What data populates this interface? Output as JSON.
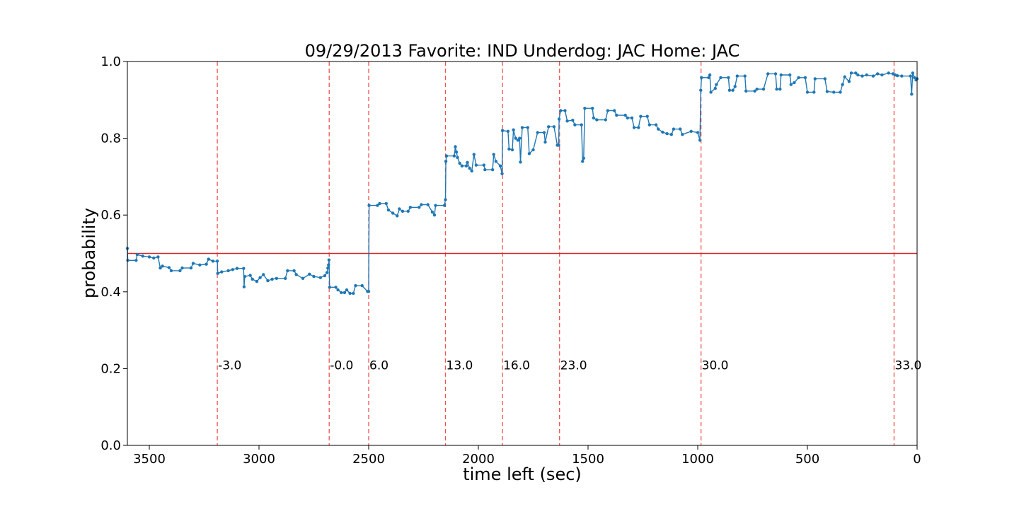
{
  "chart_data": {
    "type": "line",
    "title": "09/29/2013 Favorite: IND Underdog: JAC Home: JAC",
    "xlabel": "time left (sec)",
    "ylabel": "probability",
    "xlim": [
      3600,
      0
    ],
    "ylim": [
      0.0,
      1.0
    ],
    "x_ticks": [
      3500,
      3000,
      2500,
      2000,
      1500,
      1000,
      500,
      0
    ],
    "x_tick_labels": [
      "3500",
      "3000",
      "2500",
      "2000",
      "1500",
      "1000",
      "500",
      "0"
    ],
    "y_ticks": [
      0.0,
      0.2,
      0.4,
      0.6,
      0.8,
      1.0
    ],
    "y_tick_labels": [
      "0.0",
      "0.2",
      "0.4",
      "0.6",
      "0.8",
      "1.0"
    ],
    "grid": false,
    "reference_line": {
      "y": 0.5,
      "color": "#d62728"
    },
    "score_markers": [
      {
        "x": 3190,
        "label": "-3.0"
      },
      {
        "x": 2680,
        "label": "-0.0"
      },
      {
        "x": 2500,
        "label": "6.0"
      },
      {
        "x": 2150,
        "label": "13.0"
      },
      {
        "x": 1890,
        "label": "16.0"
      },
      {
        "x": 1630,
        "label": "23.0"
      },
      {
        "x": 985,
        "label": "30.0"
      },
      {
        "x": 105,
        "label": "33.0"
      }
    ],
    "series": [
      {
        "color": "#1f77b4",
        "points": [
          [
            3600,
            0.513
          ],
          [
            3598,
            0.482
          ],
          [
            3560,
            0.482
          ],
          [
            3555,
            0.497
          ],
          [
            3530,
            0.493
          ],
          [
            3500,
            0.491
          ],
          [
            3480,
            0.488
          ],
          [
            3460,
            0.491
          ],
          [
            3450,
            0.462
          ],
          [
            3440,
            0.467
          ],
          [
            3410,
            0.463
          ],
          [
            3400,
            0.455
          ],
          [
            3360,
            0.455
          ],
          [
            3350,
            0.462
          ],
          [
            3310,
            0.462
          ],
          [
            3300,
            0.474
          ],
          [
            3270,
            0.47
          ],
          [
            3240,
            0.472
          ],
          [
            3230,
            0.485
          ],
          [
            3210,
            0.48
          ],
          [
            3190,
            0.48
          ],
          [
            3188,
            0.448
          ],
          [
            3170,
            0.452
          ],
          [
            3140,
            0.455
          ],
          [
            3120,
            0.458
          ],
          [
            3100,
            0.461
          ],
          [
            3070,
            0.461
          ],
          [
            3068,
            0.413
          ],
          [
            3065,
            0.44
          ],
          [
            3040,
            0.443
          ],
          [
            3030,
            0.433
          ],
          [
            3010,
            0.427
          ],
          [
            2995,
            0.437
          ],
          [
            2980,
            0.445
          ],
          [
            2960,
            0.429
          ],
          [
            2940,
            0.433
          ],
          [
            2920,
            0.435
          ],
          [
            2880,
            0.435
          ],
          [
            2870,
            0.455
          ],
          [
            2840,
            0.455
          ],
          [
            2830,
            0.445
          ],
          [
            2800,
            0.435
          ],
          [
            2770,
            0.446
          ],
          [
            2750,
            0.44
          ],
          [
            2720,
            0.437
          ],
          [
            2700,
            0.442
          ],
          [
            2690,
            0.45
          ],
          [
            2686,
            0.462
          ],
          [
            2683,
            0.47
          ],
          [
            2681,
            0.483
          ],
          [
            2678,
            0.412
          ],
          [
            2650,
            0.412
          ],
          [
            2640,
            0.405
          ],
          [
            2625,
            0.398
          ],
          [
            2610,
            0.398
          ],
          [
            2600,
            0.405
          ],
          [
            2585,
            0.396
          ],
          [
            2570,
            0.396
          ],
          [
            2560,
            0.416
          ],
          [
            2530,
            0.416
          ],
          [
            2505,
            0.401
          ],
          [
            2500,
            0.401
          ],
          [
            2498,
            0.625
          ],
          [
            2460,
            0.625
          ],
          [
            2450,
            0.63
          ],
          [
            2420,
            0.63
          ],
          [
            2410,
            0.613
          ],
          [
            2390,
            0.605
          ],
          [
            2370,
            0.598
          ],
          [
            2360,
            0.616
          ],
          [
            2345,
            0.61
          ],
          [
            2320,
            0.61
          ],
          [
            2310,
            0.62
          ],
          [
            2270,
            0.62
          ],
          [
            2260,
            0.627
          ],
          [
            2230,
            0.627
          ],
          [
            2210,
            0.608
          ],
          [
            2200,
            0.6
          ],
          [
            2195,
            0.625
          ],
          [
            2155,
            0.625
          ],
          [
            2150,
            0.64
          ],
          [
            2148,
            0.74
          ],
          [
            2145,
            0.754
          ],
          [
            2110,
            0.754
          ],
          [
            2105,
            0.778
          ],
          [
            2100,
            0.764
          ],
          [
            2095,
            0.75
          ],
          [
            2085,
            0.735
          ],
          [
            2075,
            0.728
          ],
          [
            2055,
            0.728
          ],
          [
            2050,
            0.737
          ],
          [
            2040,
            0.722
          ],
          [
            2030,
            0.715
          ],
          [
            2020,
            0.758
          ],
          [
            2010,
            0.73
          ],
          [
            1975,
            0.73
          ],
          [
            1970,
            0.718
          ],
          [
            1935,
            0.718
          ],
          [
            1930,
            0.758
          ],
          [
            1920,
            0.74
          ],
          [
            1900,
            0.728
          ],
          [
            1892,
            0.708
          ],
          [
            1890,
            0.82
          ],
          [
            1865,
            0.818
          ],
          [
            1860,
            0.772
          ],
          [
            1845,
            0.77
          ],
          [
            1840,
            0.822
          ],
          [
            1830,
            0.8
          ],
          [
            1820,
            0.795
          ],
          [
            1812,
            0.8
          ],
          [
            1808,
            0.738
          ],
          [
            1800,
            0.828
          ],
          [
            1775,
            0.828
          ],
          [
            1768,
            0.76
          ],
          [
            1750,
            0.77
          ],
          [
            1730,
            0.815
          ],
          [
            1700,
            0.815
          ],
          [
            1695,
            0.79
          ],
          [
            1680,
            0.83
          ],
          [
            1655,
            0.83
          ],
          [
            1640,
            0.782
          ],
          [
            1634,
            0.782
          ],
          [
            1632,
            0.85
          ],
          [
            1625,
            0.872
          ],
          [
            1605,
            0.872
          ],
          [
            1595,
            0.845
          ],
          [
            1570,
            0.847
          ],
          [
            1560,
            0.835
          ],
          [
            1530,
            0.835
          ],
          [
            1525,
            0.74
          ],
          [
            1520,
            0.748
          ],
          [
            1515,
            0.878
          ],
          [
            1480,
            0.878
          ],
          [
            1475,
            0.853
          ],
          [
            1460,
            0.848
          ],
          [
            1420,
            0.848
          ],
          [
            1410,
            0.872
          ],
          [
            1380,
            0.872
          ],
          [
            1370,
            0.86
          ],
          [
            1330,
            0.86
          ],
          [
            1320,
            0.853
          ],
          [
            1300,
            0.853
          ],
          [
            1290,
            0.828
          ],
          [
            1270,
            0.828
          ],
          [
            1260,
            0.857
          ],
          [
            1230,
            0.857
          ],
          [
            1220,
            0.835
          ],
          [
            1190,
            0.835
          ],
          [
            1180,
            0.824
          ],
          [
            1160,
            0.816
          ],
          [
            1140,
            0.812
          ],
          [
            1120,
            0.81
          ],
          [
            1110,
            0.824
          ],
          [
            1080,
            0.824
          ],
          [
            1070,
            0.81
          ],
          [
            1030,
            0.818
          ],
          [
            1000,
            0.815
          ],
          [
            990,
            0.795
          ],
          [
            986,
            0.925
          ],
          [
            983,
            0.958
          ],
          [
            950,
            0.958
          ],
          [
            945,
            0.965
          ],
          [
            940,
            0.92
          ],
          [
            920,
            0.93
          ],
          [
            915,
            0.94
          ],
          [
            895,
            0.958
          ],
          [
            860,
            0.958
          ],
          [
            855,
            0.925
          ],
          [
            840,
            0.925
          ],
          [
            830,
            0.935
          ],
          [
            820,
            0.962
          ],
          [
            785,
            0.962
          ],
          [
            780,
            0.923
          ],
          [
            740,
            0.923
          ],
          [
            730,
            0.928
          ],
          [
            700,
            0.928
          ],
          [
            680,
            0.968
          ],
          [
            645,
            0.968
          ],
          [
            640,
            0.928
          ],
          [
            625,
            0.928
          ],
          [
            620,
            0.965
          ],
          [
            580,
            0.965
          ],
          [
            575,
            0.94
          ],
          [
            560,
            0.945
          ],
          [
            540,
            0.958
          ],
          [
            510,
            0.958
          ],
          [
            500,
            0.92
          ],
          [
            470,
            0.92
          ],
          [
            465,
            0.955
          ],
          [
            420,
            0.955
          ],
          [
            410,
            0.922
          ],
          [
            380,
            0.92
          ],
          [
            350,
            0.92
          ],
          [
            340,
            0.94
          ],
          [
            330,
            0.96
          ],
          [
            310,
            0.948
          ],
          [
            300,
            0.97
          ],
          [
            280,
            0.97
          ],
          [
            270,
            0.965
          ],
          [
            250,
            0.962
          ],
          [
            230,
            0.965
          ],
          [
            200,
            0.962
          ],
          [
            180,
            0.968
          ],
          [
            160,
            0.965
          ],
          [
            130,
            0.97
          ],
          [
            110,
            0.968
          ],
          [
            100,
            0.965
          ],
          [
            90,
            0.963
          ],
          [
            70,
            0.962
          ],
          [
            30,
            0.962
          ],
          [
            25,
            0.915
          ],
          [
            20,
            0.97
          ],
          [
            12,
            0.958
          ],
          [
            5,
            0.952
          ],
          [
            0,
            0.955
          ]
        ]
      }
    ]
  }
}
